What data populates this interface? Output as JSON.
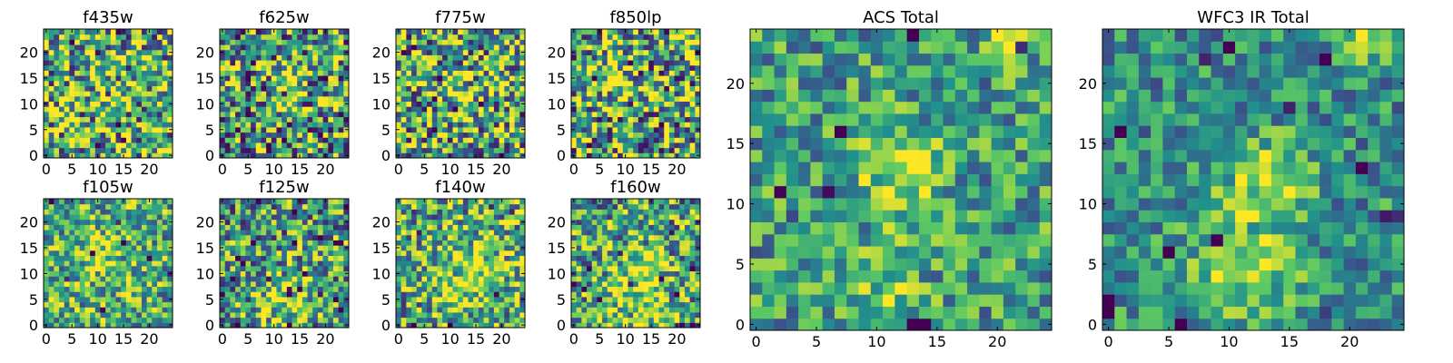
{
  "figure": {
    "colormap": "viridis",
    "colormap_stops": [
      "#440154",
      "#3b528b",
      "#21918c",
      "#5ec962",
      "#fde725"
    ],
    "axes_color": "#000000",
    "background": "#ffffff"
  },
  "chart_data": [
    {
      "type": "heatmap",
      "title": "f435w",
      "x_range": [
        0,
        24
      ],
      "y_range": [
        0,
        24
      ],
      "xticks": [
        "0",
        "5",
        "10",
        "15",
        "20"
      ],
      "yticks": [
        "0",
        "5",
        "10",
        "15",
        "20"
      ],
      "grid": false,
      "legend": "none",
      "colormap": "viridis",
      "seed": 11,
      "blobs": [],
      "noise": 0.55,
      "base": 0.64
    },
    {
      "type": "heatmap",
      "title": "f625w",
      "x_range": [
        0,
        24
      ],
      "y_range": [
        0,
        24
      ],
      "xticks": [
        "0",
        "5",
        "10",
        "15",
        "20"
      ],
      "yticks": [
        "0",
        "5",
        "10",
        "15",
        "20"
      ],
      "grid": false,
      "legend": "none",
      "colormap": "viridis",
      "seed": 23,
      "blobs": [
        [
          12,
          13,
          0.25,
          3
        ]
      ],
      "noise": 0.55,
      "base": 0.55
    },
    {
      "type": "heatmap",
      "title": "f775w",
      "x_range": [
        0,
        24
      ],
      "y_range": [
        0,
        24
      ],
      "xticks": [
        "0",
        "5",
        "10",
        "15",
        "20"
      ],
      "yticks": [
        "0",
        "5",
        "10",
        "15",
        "20"
      ],
      "grid": false,
      "legend": "none",
      "colormap": "viridis",
      "seed": 37,
      "blobs": [
        [
          12,
          12,
          0.2,
          3
        ]
      ],
      "noise": 0.55,
      "base": 0.6
    },
    {
      "type": "heatmap",
      "title": "f850lp",
      "x_range": [
        0,
        24
      ],
      "y_range": [
        0,
        24
      ],
      "xticks": [
        "0",
        "5",
        "10",
        "15",
        "20"
      ],
      "yticks": [
        "0",
        "5",
        "10",
        "15",
        "20"
      ],
      "grid": false,
      "legend": "none",
      "colormap": "viridis",
      "seed": 41,
      "blobs": [
        [
          21,
          23,
          0.3,
          2
        ],
        [
          8,
          16,
          0.2,
          3
        ]
      ],
      "noise": 0.55,
      "base": 0.58
    },
    {
      "type": "heatmap",
      "title": "f105w",
      "x_range": [
        0,
        24
      ],
      "y_range": [
        0,
        24
      ],
      "xticks": [
        "0",
        "5",
        "10",
        "15",
        "20"
      ],
      "yticks": [
        "0",
        "5",
        "10",
        "15",
        "20"
      ],
      "grid": false,
      "legend": "none",
      "colormap": "viridis",
      "seed": 53,
      "blobs": [
        [
          12,
          13,
          0.2,
          4
        ]
      ],
      "noise": 0.4,
      "base": 0.62
    },
    {
      "type": "heatmap",
      "title": "f125w",
      "x_range": [
        0,
        24
      ],
      "y_range": [
        0,
        24
      ],
      "xticks": [
        "0",
        "5",
        "10",
        "15",
        "20"
      ],
      "yticks": [
        "0",
        "5",
        "10",
        "15",
        "20"
      ],
      "grid": false,
      "legend": "none",
      "colormap": "viridis",
      "seed": 67,
      "blobs": [
        [
          12,
          5,
          0.25,
          4
        ]
      ],
      "noise": 0.45,
      "base": 0.55
    },
    {
      "type": "heatmap",
      "title": "f140w",
      "x_range": [
        0,
        24
      ],
      "y_range": [
        0,
        24
      ],
      "xticks": [
        "0",
        "5",
        "10",
        "15",
        "20"
      ],
      "yticks": [
        "0",
        "5",
        "10",
        "15",
        "20"
      ],
      "grid": false,
      "legend": "none",
      "colormap": "viridis",
      "seed": 79,
      "blobs": [
        [
          14,
          10,
          0.25,
          5
        ]
      ],
      "noise": 0.45,
      "base": 0.6
    },
    {
      "type": "heatmap",
      "title": "f160w",
      "x_range": [
        0,
        24
      ],
      "y_range": [
        0,
        24
      ],
      "xticks": [
        "0",
        "5",
        "10",
        "15",
        "20"
      ],
      "yticks": [
        "0",
        "5",
        "10",
        "15",
        "20"
      ],
      "grid": false,
      "legend": "none",
      "colormap": "viridis",
      "seed": 83,
      "blobs": [
        [
          12,
          4,
          0.3,
          5
        ],
        [
          13,
          12,
          0.2,
          3
        ]
      ],
      "noise": 0.45,
      "base": 0.58
    },
    {
      "type": "heatmap",
      "title": "ACS Total",
      "x_range": [
        0,
        24
      ],
      "y_range": [
        0,
        24
      ],
      "xticks": [
        "0",
        "5",
        "10",
        "15",
        "20"
      ],
      "yticks": [
        "0",
        "5",
        "10",
        "15",
        "20"
      ],
      "grid": false,
      "legend": "none",
      "colormap": "viridis",
      "seed": 97,
      "blobs": [
        [
          12,
          12,
          0.35,
          2.5
        ],
        [
          11,
          3,
          0.25,
          2
        ],
        [
          21,
          24,
          0.35,
          1.5
        ]
      ],
      "noise": 0.32,
      "base": 0.55
    },
    {
      "type": "heatmap",
      "title": "WFC3 IR Total",
      "x_range": [
        0,
        24
      ],
      "y_range": [
        0,
        24
      ],
      "xticks": [
        "0",
        "5",
        "10",
        "15",
        "20"
      ],
      "yticks": [
        "0",
        "5",
        "10",
        "15",
        "20"
      ],
      "grid": false,
      "legend": "none",
      "colormap": "viridis",
      "seed": 101,
      "blobs": [
        [
          13,
          12,
          0.35,
          2.5
        ],
        [
          11,
          5,
          0.4,
          3
        ],
        [
          21,
          24,
          0.35,
          1.5
        ]
      ],
      "noise": 0.28,
      "base": 0.5
    }
  ]
}
